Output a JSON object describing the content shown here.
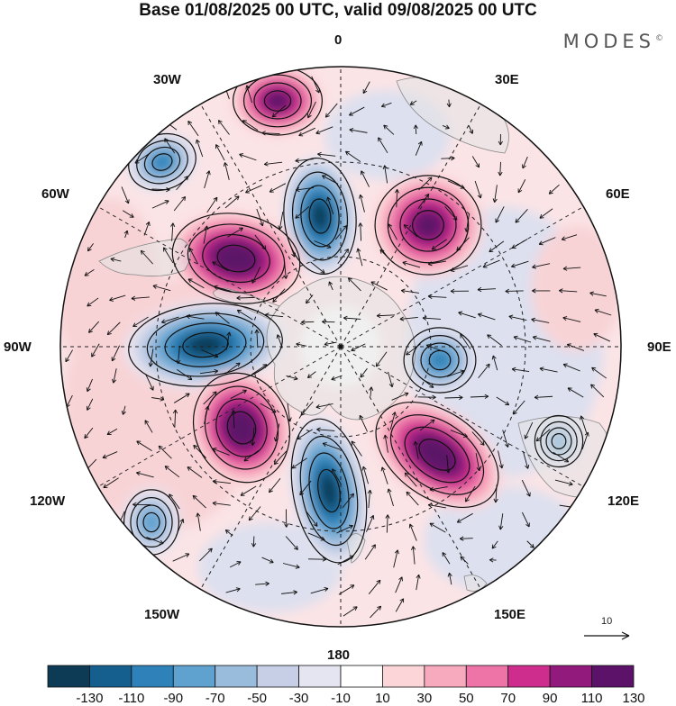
{
  "title": "Base 01/08/2025 00 UTC, valid 09/08/2025 00 UTC",
  "brand": "MODES",
  "brand_mark": "©",
  "longitude_labels": {
    "lon_0": "0",
    "lon_30E": "30E",
    "lon_60E": "60E",
    "lon_90E": "90E",
    "lon_120E": "120E",
    "lon_150E": "150E",
    "lon_180": "180",
    "lon_150W": "150W",
    "lon_120W": "120W",
    "lon_90W": "90W",
    "lon_60W": "60W",
    "lon_30W": "30W"
  },
  "reference_vector_label": "10",
  "colorbar": {
    "labels": [
      "-130",
      "-110",
      "-90",
      "-70",
      "-50",
      "-30",
      "-10",
      "10",
      "30",
      "50",
      "70",
      "90",
      "110",
      "130"
    ],
    "colors": [
      "#0d3a55",
      "#145f8e",
      "#2f82b9",
      "#5fa2cf",
      "#99bbdc",
      "#c6cfe5",
      "#e5e5f1",
      "#ffffff",
      "#fbd5d8",
      "#f7a9bd",
      "#ee74a8",
      "#cf2d8e",
      "#911a7c",
      "#5c1268"
    ]
  },
  "colors": {
    "land": "#e3e3e3",
    "coast": "#888888",
    "grid": "#222222",
    "vector": "#111111"
  },
  "anomaly_centers": [
    {
      "name": "low-south-atlantic",
      "value": -90
    },
    {
      "name": "high-near-greenwich",
      "value": 110
    },
    {
      "name": "low-greenwich-inner",
      "value": -130
    },
    {
      "name": "high-30e",
      "value": 110
    },
    {
      "name": "high-60w",
      "value": 130
    },
    {
      "name": "low-90w",
      "value": -130
    },
    {
      "name": "low-90e",
      "value": -90
    },
    {
      "name": "high-140w",
      "value": 130
    },
    {
      "name": "low-170w",
      "value": -130
    },
    {
      "name": "high-150e",
      "value": 130
    },
    {
      "name": "low-120w",
      "value": -70
    },
    {
      "name": "low-105e",
      "value": -70
    }
  ]
}
